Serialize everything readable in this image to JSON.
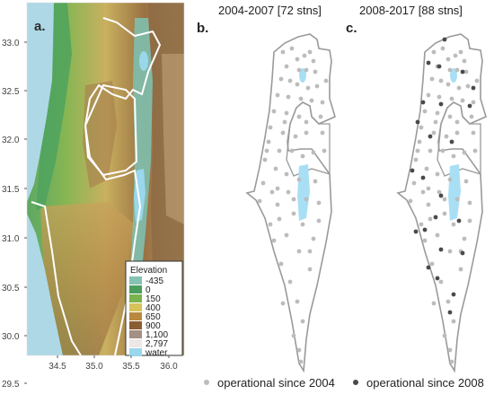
{
  "panels": {
    "a": {
      "letter": "a."
    },
    "b": {
      "letter": "b.",
      "title": "2004-2007 [72 stns]"
    },
    "c": {
      "letter": "c.",
      "title": "2008-2017 [88 stns]"
    }
  },
  "axes": {
    "y_ticks": [
      "33.0",
      "32.5",
      "32.0",
      "31.5",
      "31.0",
      "30.5",
      "30.0",
      "29.5"
    ],
    "x_ticks": [
      "34.5",
      "35.0",
      "35.5",
      "36.0"
    ]
  },
  "elevation_legend": {
    "title": "Elevation",
    "entries": [
      {
        "label": "-435",
        "color": "#86c2b3"
      },
      {
        "label": "0",
        "color": "#4a9e5c"
      },
      {
        "label": "150",
        "color": "#7ab34d"
      },
      {
        "label": "400",
        "color": "#d8c25a"
      },
      {
        "label": "650",
        "color": "#b98a3e"
      },
      {
        "label": "900",
        "color": "#8a5d33"
      },
      {
        "label": "1,100",
        "color": "#a38f84"
      },
      {
        "label": "2,797",
        "color": "#ece8e6"
      },
      {
        "label": "water",
        "color": "#9ad7ec"
      }
    ]
  },
  "station_legend": {
    "since_2004": {
      "label": "operational since 2004",
      "color": "#bcbcbc"
    },
    "since_2008": {
      "label": "operational since 2008",
      "color": "#4a4a4a"
    }
  },
  "colors": {
    "sea": "#aed8e6",
    "border": "#ffffff",
    "outline": "#9a9a9a",
    "lake": "#a9dff4"
  }
}
